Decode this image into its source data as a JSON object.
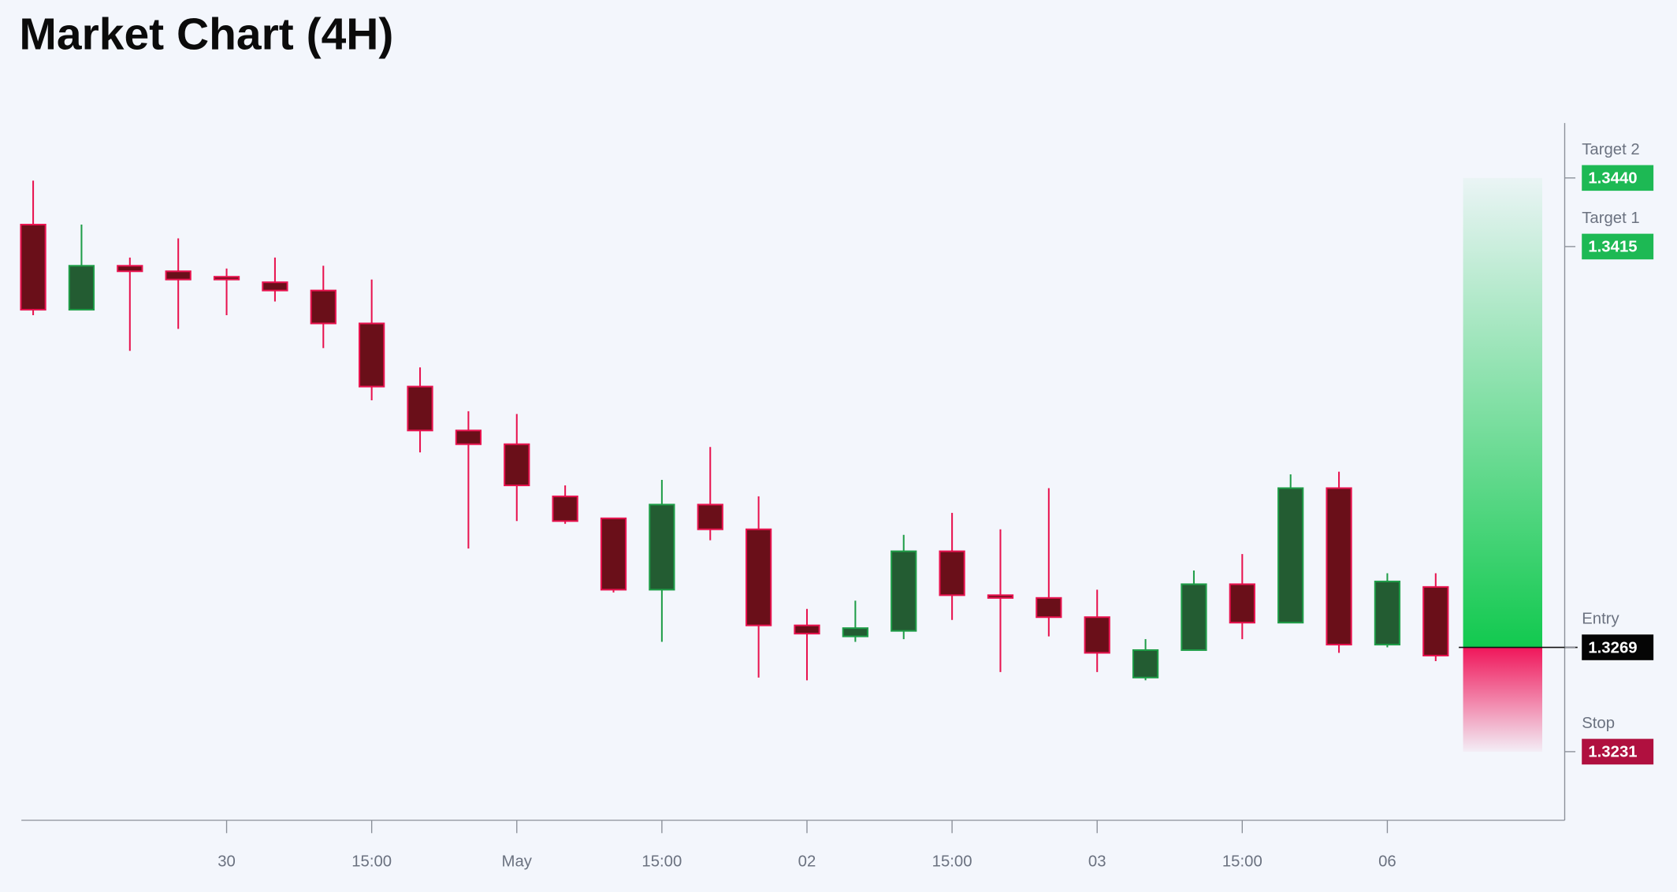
{
  "chart_data": {
    "type": "candlestick",
    "title": "Market Chart (4H)",
    "categories": [
      null,
      null,
      null,
      null,
      "30",
      null,
      null,
      "15:00",
      null,
      null,
      "May",
      null,
      null,
      "15:00",
      null,
      null,
      "02",
      null,
      null,
      "15:00",
      null,
      null,
      "03",
      null,
      null,
      "15:00",
      null,
      null,
      "06",
      null
    ],
    "open": [
      1.3423,
      1.3392,
      1.3408,
      1.3406,
      1.3404,
      1.3402,
      1.3399,
      1.3387,
      1.3364,
      1.3348,
      1.3343,
      1.3324,
      1.3316,
      1.329,
      1.3321,
      1.3312,
      1.3277,
      1.3273,
      1.3275,
      1.3304,
      1.3288,
      1.3287,
      1.328,
      1.3258,
      1.3268,
      1.3292,
      1.3278,
      1.3327,
      1.327,
      1.3291
    ],
    "high": [
      1.3439,
      1.3423,
      1.3411,
      1.3418,
      1.3407,
      1.3411,
      1.3408,
      1.3403,
      1.3371,
      1.3355,
      1.3354,
      1.3328,
      1.3316,
      1.333,
      1.3342,
      1.3324,
      1.3283,
      1.3286,
      1.331,
      1.3318,
      1.3312,
      1.3327,
      1.329,
      1.3272,
      1.3297,
      1.3303,
      1.3332,
      1.3333,
      1.3296,
      1.3296
    ],
    "low": [
      1.339,
      1.3392,
      1.3377,
      1.3385,
      1.339,
      1.3395,
      1.3378,
      1.3359,
      1.334,
      1.3305,
      1.3315,
      1.3314,
      1.3289,
      1.3271,
      1.3308,
      1.3258,
      1.3257,
      1.3271,
      1.3272,
      1.3279,
      1.326,
      1.3273,
      1.326,
      1.3257,
      1.3268,
      1.3272,
      1.3278,
      1.3267,
      1.3269,
      1.3264
    ],
    "close": [
      1.3392,
      1.3408,
      1.3406,
      1.3403,
      1.3403,
      1.3399,
      1.3387,
      1.3364,
      1.3348,
      1.3343,
      1.3328,
      1.3315,
      1.329,
      1.3321,
      1.3312,
      1.3277,
      1.3274,
      1.3276,
      1.3304,
      1.3288,
      1.3287,
      1.328,
      1.3267,
      1.3268,
      1.3292,
      1.3278,
      1.3327,
      1.327,
      1.3293,
      1.3266
    ],
    "up_color": "#1f9d48",
    "up_fill": "#235c32",
    "down_color": "#e8134f",
    "down_fill": "#6a0f19",
    "ylim": [
      1.3206,
      1.346
    ],
    "levels": [
      {
        "name": "Target 2",
        "value": 1.344,
        "label": "1.3440",
        "color": "#1db954"
      },
      {
        "name": "Target 1",
        "value": 1.3415,
        "label": "1.3415",
        "color": "#1db954"
      },
      {
        "name": "Entry",
        "value": 1.3269,
        "label": "1.3269",
        "color": "#050505"
      },
      {
        "name": "Stop",
        "value": 1.3231,
        "label": "1.3231",
        "color": "#b0103f"
      }
    ],
    "profit_color": "#12c94f",
    "loss_color": "#f0165a"
  }
}
